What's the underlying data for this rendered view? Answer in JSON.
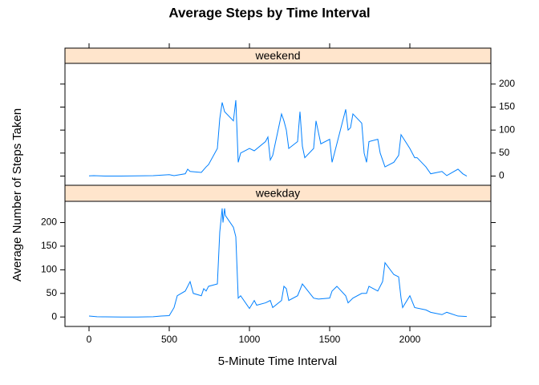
{
  "chart_data": {
    "type": "line",
    "title": "Average Steps by Time Interval",
    "xlabel": "5-Minute Time Interval",
    "ylabel": "Average Number of Steps Taken",
    "color": "#0080ff",
    "strip_color": "#ffe5cc",
    "xlim": [
      -150,
      2505
    ],
    "xticks": [
      0,
      500,
      1000,
      1500,
      2000
    ],
    "ylim": [
      -20,
      245
    ],
    "yticks": [
      0,
      50,
      100,
      150,
      200
    ],
    "panels": [
      {
        "name": "weekend",
        "x": [
          0,
          30,
          100,
          200,
          400,
          500,
          530,
          600,
          615,
          630,
          700,
          730,
          745,
          800,
          815,
          830,
          845,
          900,
          915,
          930,
          945,
          1000,
          1030,
          1100,
          1115,
          1130,
          1145,
          1200,
          1215,
          1230,
          1245,
          1300,
          1315,
          1330,
          1345,
          1400,
          1415,
          1430,
          1445,
          1500,
          1515,
          1530,
          1600,
          1615,
          1630,
          1645,
          1700,
          1715,
          1730,
          1745,
          1800,
          1815,
          1830,
          1845,
          1900,
          1930,
          1945,
          2000,
          2030,
          2045,
          2100,
          2130,
          2200,
          2230,
          2300,
          2330,
          2355
        ],
        "values": [
          0.5,
          1,
          0,
          0,
          1,
          3,
          1,
          5,
          15,
          10,
          8,
          20,
          25,
          60,
          125,
          160,
          140,
          120,
          165,
          30,
          50,
          60,
          55,
          75,
          85,
          35,
          45,
          135,
          120,
          100,
          60,
          75,
          140,
          65,
          40,
          60,
          120,
          95,
          70,
          80,
          30,
          50,
          145,
          100,
          105,
          135,
          115,
          50,
          30,
          75,
          80,
          50,
          35,
          20,
          30,
          45,
          90,
          60,
          40,
          40,
          20,
          5,
          10,
          1,
          15,
          5,
          0
        ]
      },
      {
        "name": "weekday",
        "x": [
          0,
          50,
          100,
          200,
          300,
          400,
          450,
          500,
          530,
          550,
          600,
          630,
          650,
          700,
          715,
          730,
          745,
          800,
          815,
          830,
          835,
          845,
          850,
          900,
          915,
          930,
          945,
          1000,
          1030,
          1045,
          1100,
          1130,
          1145,
          1200,
          1215,
          1230,
          1245,
          1300,
          1330,
          1400,
          1430,
          1500,
          1515,
          1545,
          1600,
          1615,
          1645,
          1700,
          1730,
          1745,
          1800,
          1830,
          1845,
          1900,
          1930,
          1945,
          1955,
          2000,
          2030,
          2100,
          2130,
          2200,
          2230,
          2300,
          2355
        ],
        "values": [
          2,
          0.5,
          0.3,
          0,
          0,
          0.5,
          2,
          3,
          20,
          45,
          55,
          75,
          50,
          45,
          60,
          55,
          65,
          70,
          180,
          230,
          200,
          230,
          215,
          190,
          170,
          40,
          45,
          18,
          35,
          25,
          30,
          35,
          20,
          35,
          65,
          60,
          35,
          45,
          70,
          40,
          38,
          40,
          55,
          65,
          45,
          30,
          40,
          50,
          50,
          65,
          55,
          75,
          115,
          90,
          85,
          40,
          20,
          45,
          20,
          15,
          10,
          5,
          10,
          2,
          1
        ]
      }
    ]
  }
}
